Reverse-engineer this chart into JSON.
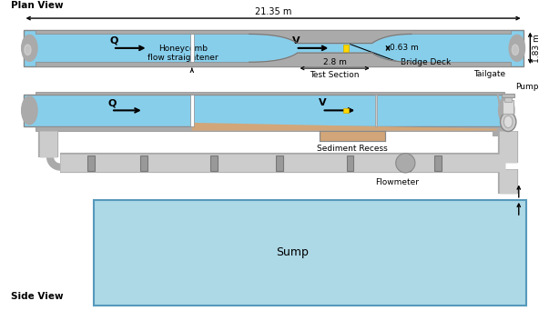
{
  "bg_color": "#ffffff",
  "water_color": "#87CEEB",
  "obstruction_color": "#aaaaaa",
  "sand_color": "#D2A679",
  "pipe_color": "#bbbbbb",
  "sump_color": "#ADD8E6",
  "yellow_block": "#FFD700",
  "plan_view_label": "Plan View",
  "side_view_label": "Side View",
  "title_21m": "21.35 m",
  "label_063": "0.63 m",
  "label_183": "1.83 m",
  "label_28": "2.8 m",
  "label_test": "Test Section",
  "label_honeycomb": "Honeycomb\nflow straightener",
  "label_bridge": "Bridge Deck",
  "label_tailgate": "Tailgate",
  "label_sediment": "Sediment Recess",
  "label_flowmeter": "Flowmeter",
  "label_pump": "Pump",
  "label_sump": "Sump",
  "label_Q": "Q",
  "label_V": "V"
}
